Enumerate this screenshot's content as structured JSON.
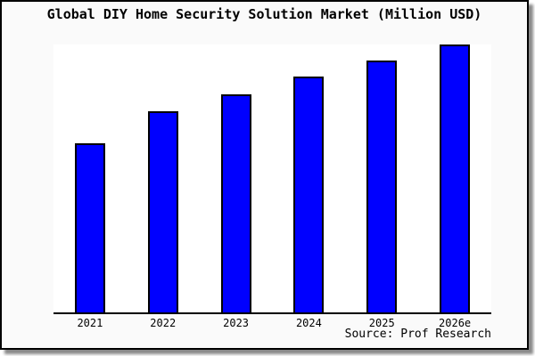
{
  "chart_data": {
    "type": "bar",
    "title": "Global DIY Home Security Solution Market (Million USD)",
    "categories": [
      "2021",
      "2022",
      "2023",
      "2024",
      "2025",
      "2026e"
    ],
    "values": [
      63,
      75,
      81.5,
      88,
      94,
      100
    ],
    "xlabel": "",
    "ylabel": "",
    "ylim": [
      0,
      100
    ],
    "y_axis_visible": false,
    "grid": false,
    "legend": null,
    "bar_color": "#0000ff",
    "bar_border_color": "#000000",
    "source": "Source: Prof Research"
  },
  "colors": {
    "card_background": "#fafafa",
    "plot_background": "#ffffff",
    "frame_border": "#000000",
    "text": "#000000"
  }
}
